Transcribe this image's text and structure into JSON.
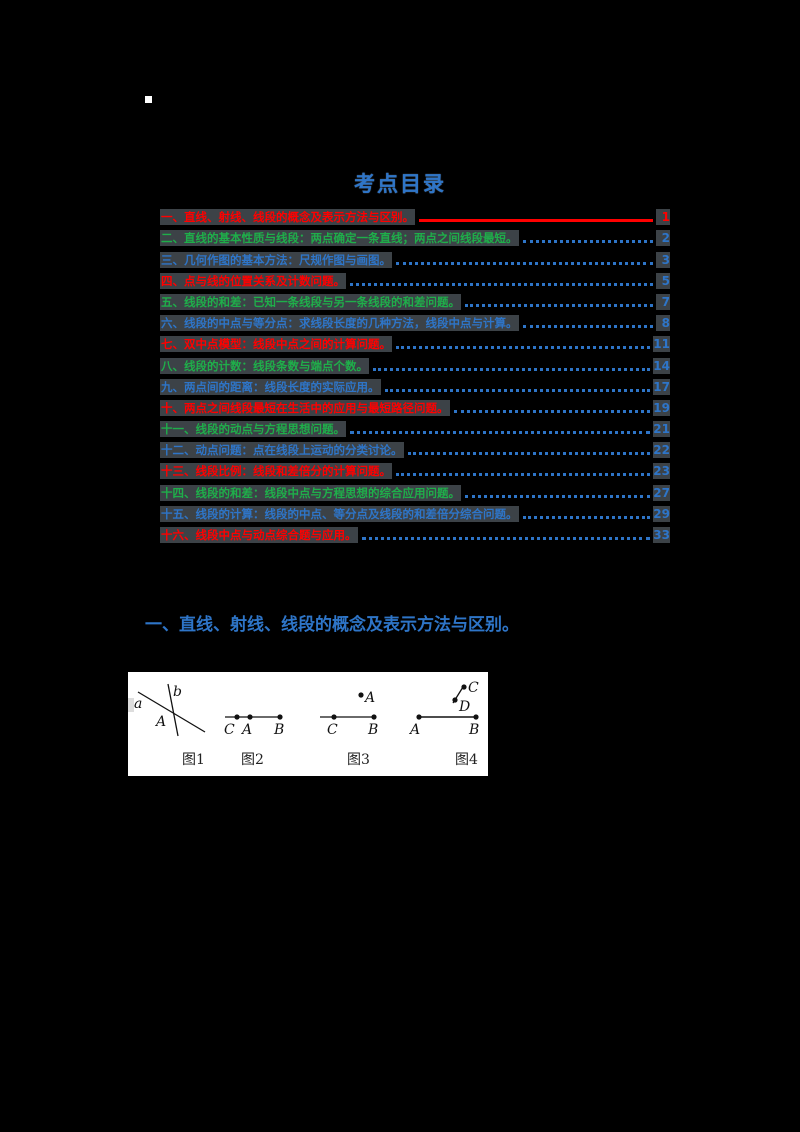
{
  "document": {
    "toc_title": "考点目录",
    "toc": [
      {
        "num": "一、",
        "text": "直线、射线、线段的概念及表示方法与区别。",
        "page": "1",
        "color": "red"
      },
      {
        "num": "二、",
        "text": "直线的基本性质与线段：两点确定一条直线；两点之间线段最短。",
        "page": "2",
        "color": "green"
      },
      {
        "num": "三、",
        "text": "几何作图的基本方法：尺规作图与画图。",
        "page": "3",
        "color": "blue"
      },
      {
        "num": "四、",
        "text": "点与线的位置关系及计数问题。",
        "page": "5",
        "color": "red"
      },
      {
        "num": "五、",
        "text": "线段的和差：已知一条线段与另一条线段的和差问题。",
        "page": "7",
        "color": "green"
      },
      {
        "num": "六、",
        "text": "线段的中点与等分点：求线段长度的几种方法，线段中点与计算。",
        "page": "8",
        "color": "blue"
      },
      {
        "num": "七、",
        "text": "双中点模型：线段中点之间的计算问题。",
        "page": "11",
        "color": "red"
      },
      {
        "num": "八、",
        "text": "线段的计数：线段条数与端点个数。",
        "page": "14",
        "color": "green"
      },
      {
        "num": "九、",
        "text": "两点间的距离：线段长度的实际应用。",
        "page": "17",
        "color": "blue"
      },
      {
        "num": "十、",
        "text": "两点之间线段最短在生活中的应用与最短路径问题。",
        "page": "19",
        "color": "red"
      },
      {
        "num": "十一、",
        "text": "线段的动点与方程思想问题。",
        "page": "21",
        "color": "green"
      },
      {
        "num": "十二、",
        "text": "动点问题：点在线段上运动的分类讨论。",
        "page": "22",
        "color": "blue"
      },
      {
        "num": "十三、",
        "text": "线段比例：线段和差倍分的计算问题。",
        "page": "23",
        "color": "red"
      },
      {
        "num": "十四、",
        "text": "线段的和差：线段中点与方程思想的综合应用问题。",
        "page": "27",
        "color": "green"
      },
      {
        "num": "十五、",
        "text": "线段的计算：线段的中点、等分点及线段的和差倍分综合问题。",
        "page": "29",
        "color": "blue"
      },
      {
        "num": "十六、",
        "text": "线段中点与动点综合题与应用。",
        "page": "33",
        "color": "red"
      }
    ],
    "section_heading": "一、直线、射线、线段的概念及表示方法与区别。",
    "figures": {
      "fig1": {
        "caption": "图1",
        "labels": [
          "a",
          "b",
          "A"
        ]
      },
      "fig2": {
        "caption": "图2",
        "labels": [
          "C",
          "A",
          "B"
        ]
      },
      "fig3": {
        "caption": "图3",
        "labels": [
          "A",
          "C",
          "B"
        ]
      },
      "fig4": {
        "caption": "图4",
        "labels": [
          "C",
          "D",
          "A",
          "B"
        ]
      }
    },
    "colors": {
      "red": "#ff0000",
      "green": "#1fae4a",
      "blue": "#2e75c8"
    }
  }
}
